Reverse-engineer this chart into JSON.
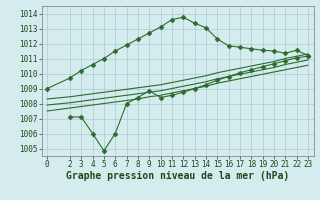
{
  "series": [
    {
      "x": [
        0,
        2,
        3,
        4,
        5,
        6,
        7,
        8,
        9,
        10,
        11,
        12,
        13,
        14,
        15,
        16,
        17,
        18,
        19,
        20,
        21,
        22,
        23
      ],
      "y": [
        1009.0,
        1009.7,
        1010.2,
        1010.6,
        1011.0,
        1011.5,
        1011.9,
        1012.3,
        1012.7,
        1013.1,
        1013.6,
        1013.75,
        1013.35,
        1013.05,
        1012.3,
        1011.85,
        1011.75,
        1011.65,
        1011.55,
        1011.5,
        1011.35,
        1011.55,
        1011.2
      ],
      "marker": "D",
      "markersize": 2.5
    },
    {
      "x": [
        2,
        3,
        4,
        5,
        6,
        7,
        8,
        9,
        10,
        11,
        12,
        13,
        14,
        15,
        16,
        17,
        18,
        19,
        20,
        21,
        22,
        23
      ],
      "y": [
        1007.1,
        1007.1,
        1006.0,
        1004.85,
        1006.0,
        1008.0,
        1008.4,
        1008.85,
        1008.4,
        1008.55,
        1008.75,
        1009.0,
        1009.25,
        1009.55,
        1009.8,
        1010.05,
        1010.25,
        1010.45,
        1010.65,
        1010.85,
        1011.05,
        1011.15
      ],
      "marker": "D",
      "markersize": 2.5
    },
    {
      "x": [
        0,
        2,
        3,
        4,
        5,
        6,
        7,
        8,
        9,
        10,
        11,
        12,
        13,
        14,
        15,
        16,
        17,
        18,
        19,
        20,
        21,
        22,
        23
      ],
      "y": [
        1007.5,
        1007.7,
        1007.8,
        1007.9,
        1008.0,
        1008.1,
        1008.2,
        1008.3,
        1008.45,
        1008.55,
        1008.7,
        1008.85,
        1009.0,
        1009.15,
        1009.35,
        1009.5,
        1009.65,
        1009.8,
        1009.95,
        1010.1,
        1010.25,
        1010.4,
        1010.55
      ],
      "marker": null,
      "markersize": 0
    },
    {
      "x": [
        0,
        2,
        3,
        4,
        5,
        6,
        7,
        8,
        9,
        10,
        11,
        12,
        13,
        14,
        15,
        16,
        17,
        18,
        19,
        20,
        21,
        22,
        23
      ],
      "y": [
        1007.9,
        1008.05,
        1008.15,
        1008.25,
        1008.35,
        1008.45,
        1008.55,
        1008.65,
        1008.75,
        1008.85,
        1009.0,
        1009.15,
        1009.3,
        1009.45,
        1009.65,
        1009.8,
        1009.95,
        1010.1,
        1010.25,
        1010.4,
        1010.6,
        1010.75,
        1010.9
      ],
      "marker": null,
      "markersize": 0
    },
    {
      "x": [
        0,
        2,
        3,
        4,
        5,
        6,
        7,
        8,
        9,
        10,
        11,
        12,
        13,
        14,
        15,
        16,
        17,
        18,
        19,
        20,
        21,
        22,
        23
      ],
      "y": [
        1008.3,
        1008.45,
        1008.55,
        1008.65,
        1008.75,
        1008.85,
        1008.95,
        1009.05,
        1009.15,
        1009.25,
        1009.4,
        1009.55,
        1009.7,
        1009.85,
        1010.05,
        1010.2,
        1010.35,
        1010.5,
        1010.65,
        1010.8,
        1011.0,
        1011.15,
        1011.3
      ],
      "marker": null,
      "markersize": 0
    }
  ],
  "xlim": [
    -0.5,
    23.5
  ],
  "ylim": [
    1004.5,
    1014.5
  ],
  "xticks": [
    0,
    2,
    3,
    4,
    5,
    6,
    7,
    8,
    9,
    10,
    11,
    12,
    13,
    14,
    15,
    16,
    17,
    18,
    19,
    20,
    21,
    22,
    23
  ],
  "yticks": [
    1005,
    1006,
    1007,
    1008,
    1009,
    1010,
    1011,
    1012,
    1013,
    1014
  ],
  "xlabel": "Graphe pression niveau de la mer (hPa)",
  "line_color": "#2d6a2d",
  "bg_color": "#d4ecee",
  "grid_color": "#aaccd4",
  "tick_fontsize": 5.5,
  "xlabel_fontsize": 7,
  "figsize": [
    3.2,
    2.0
  ],
  "dpi": 100
}
